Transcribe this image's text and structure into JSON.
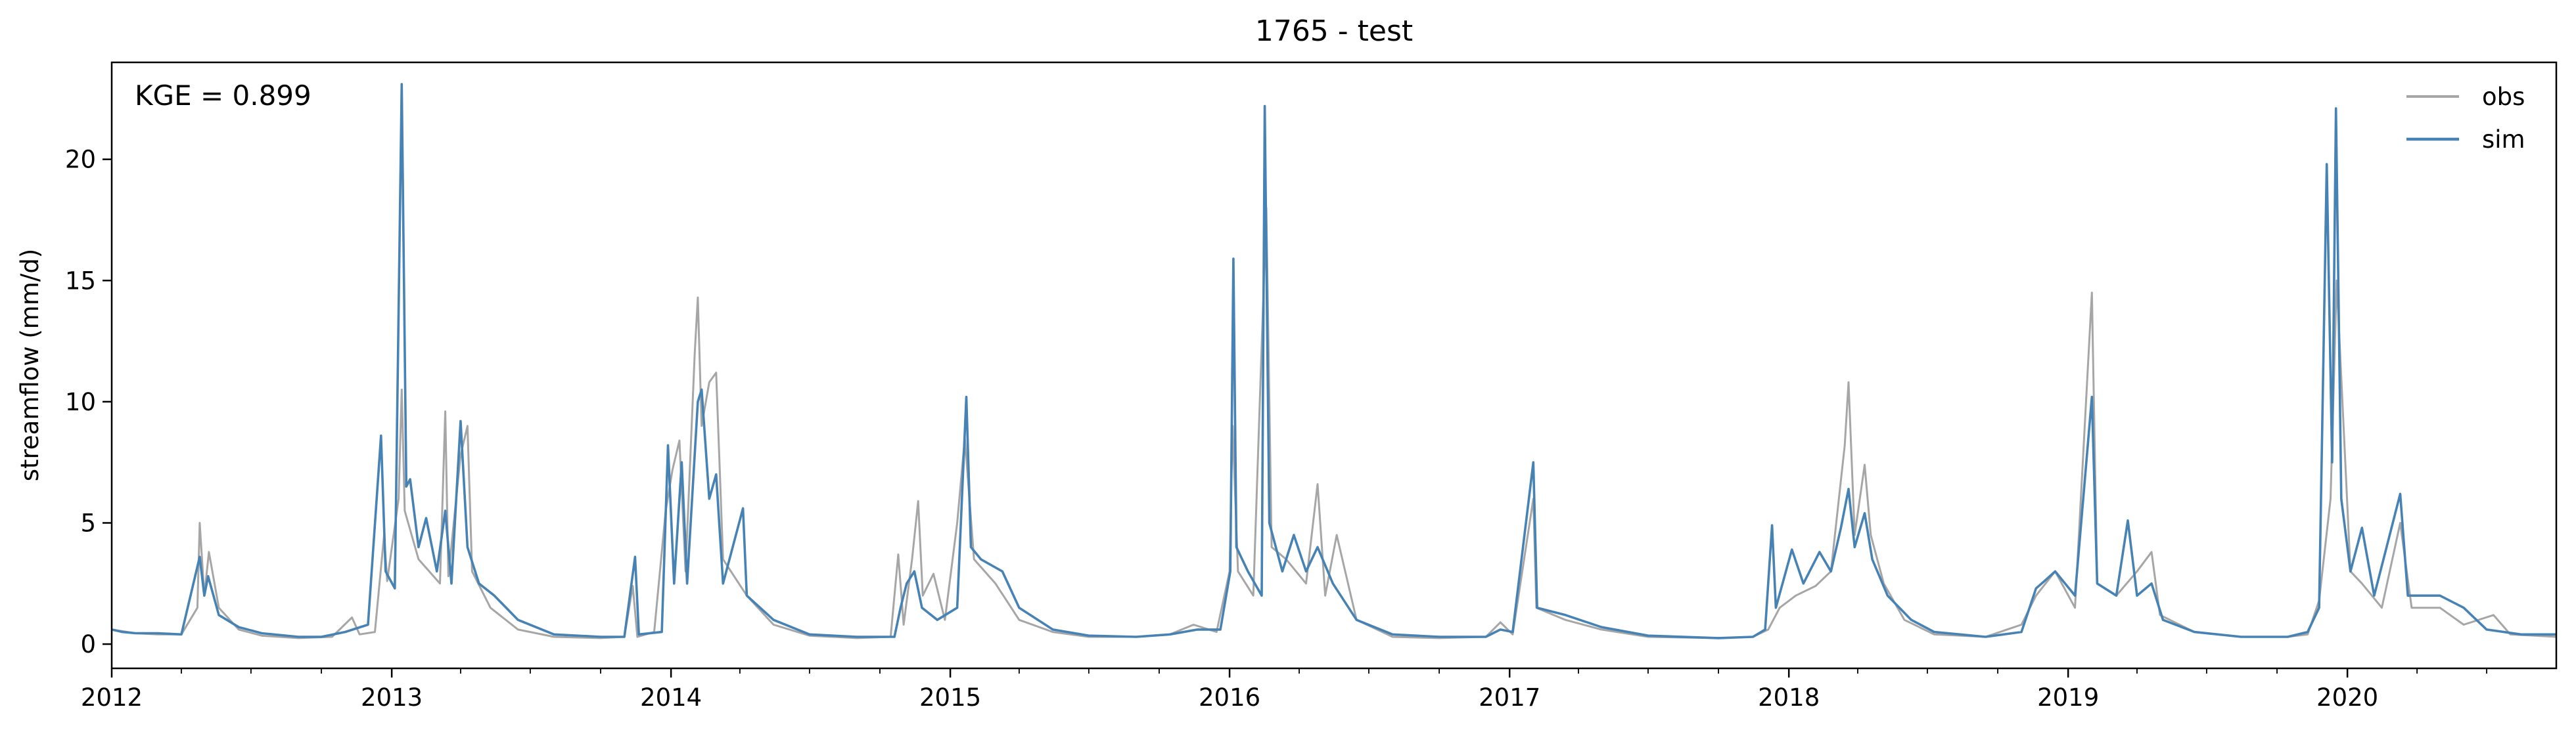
{
  "chart_data": {
    "type": "line",
    "title": "1765 - test",
    "xlabel": "",
    "ylabel": "streamflow (mm/d)",
    "annotation": "KGE = 0.899",
    "legend_position": "top-right",
    "grid": false,
    "xlim": [
      "2012-01-01",
      "2020-09-30"
    ],
    "ylim": [
      -1.0,
      24.0
    ],
    "x_ticks": [
      "2012",
      "2013",
      "2014",
      "2015",
      "2016",
      "2017",
      "2018",
      "2019",
      "2020"
    ],
    "y_ticks": [
      0,
      5,
      10,
      15,
      20
    ],
    "colors": {
      "obs": "#a6a6a6",
      "sim": "#4682b4"
    },
    "series": [
      {
        "name": "obs",
        "color": "#a6a6a6",
        "points": [
          [
            "2012-01-01",
            0.6
          ],
          [
            "2012-02-01",
            0.45
          ],
          [
            "2012-03-01",
            0.4
          ],
          [
            "2012-04-01",
            0.4
          ],
          [
            "2012-04-22",
            1.5
          ],
          [
            "2012-04-25",
            5.0
          ],
          [
            "2012-05-01",
            2.0
          ],
          [
            "2012-05-07",
            3.8
          ],
          [
            "2012-05-20",
            1.5
          ],
          [
            "2012-06-15",
            0.6
          ],
          [
            "2012-07-15",
            0.35
          ],
          [
            "2012-09-01",
            0.25
          ],
          [
            "2012-10-15",
            0.3
          ],
          [
            "2012-11-10",
            1.1
          ],
          [
            "2012-11-20",
            0.4
          ],
          [
            "2012-12-10",
            0.5
          ],
          [
            "2012-12-22",
            4.5
          ],
          [
            "2012-12-26",
            2.6
          ],
          [
            "2013-01-10",
            6.0
          ],
          [
            "2013-01-14",
            10.5
          ],
          [
            "2013-01-18",
            5.5
          ],
          [
            "2013-02-05",
            3.5
          ],
          [
            "2013-03-05",
            2.5
          ],
          [
            "2013-03-12",
            9.6
          ],
          [
            "2013-03-16",
            2.8
          ],
          [
            "2013-04-01",
            7.8
          ],
          [
            "2013-04-10",
            9.0
          ],
          [
            "2013-04-16",
            3.0
          ],
          [
            "2013-05-10",
            1.5
          ],
          [
            "2013-06-15",
            0.6
          ],
          [
            "2013-08-01",
            0.3
          ],
          [
            "2013-10-01",
            0.25
          ],
          [
            "2013-11-01",
            0.3
          ],
          [
            "2013-11-12",
            2.4
          ],
          [
            "2013-11-18",
            0.3
          ],
          [
            "2013-12-10",
            0.5
          ],
          [
            "2013-12-25",
            5.5
          ],
          [
            "2014-01-03",
            7.2
          ],
          [
            "2014-01-12",
            8.4
          ],
          [
            "2014-01-20",
            3.0
          ],
          [
            "2014-02-01",
            12.0
          ],
          [
            "2014-02-05",
            14.3
          ],
          [
            "2014-02-10",
            9.0
          ],
          [
            "2014-02-20",
            10.8
          ],
          [
            "2014-03-01",
            11.2
          ],
          [
            "2014-03-10",
            3.5
          ],
          [
            "2014-04-10",
            2.0
          ],
          [
            "2014-05-15",
            0.8
          ],
          [
            "2014-07-01",
            0.35
          ],
          [
            "2014-09-01",
            0.25
          ],
          [
            "2014-10-15",
            0.3
          ],
          [
            "2014-10-25",
            3.7
          ],
          [
            "2014-11-01",
            0.8
          ],
          [
            "2014-11-12",
            3.5
          ],
          [
            "2014-11-20",
            5.9
          ],
          [
            "2014-11-26",
            2.0
          ],
          [
            "2014-12-10",
            2.9
          ],
          [
            "2014-12-25",
            1.0
          ],
          [
            "2015-01-10",
            5.0
          ],
          [
            "2015-01-20",
            8.5
          ],
          [
            "2015-02-01",
            3.5
          ],
          [
            "2015-03-01",
            2.5
          ],
          [
            "2015-04-01",
            1.0
          ],
          [
            "2015-05-15",
            0.5
          ],
          [
            "2015-07-01",
            0.3
          ],
          [
            "2015-09-01",
            0.3
          ],
          [
            "2015-10-15",
            0.4
          ],
          [
            "2015-11-15",
            0.8
          ],
          [
            "2015-12-15",
            0.5
          ],
          [
            "2016-01-01",
            3.0
          ],
          [
            "2016-01-05",
            9.0
          ],
          [
            "2016-01-12",
            3.0
          ],
          [
            "2016-02-01",
            2.0
          ],
          [
            "2016-02-18",
            18.0
          ],
          [
            "2016-02-25",
            4.0
          ],
          [
            "2016-03-15",
            3.5
          ],
          [
            "2016-04-10",
            2.5
          ],
          [
            "2016-04-25",
            6.6
          ],
          [
            "2016-05-05",
            2.0
          ],
          [
            "2016-05-20",
            4.5
          ],
          [
            "2016-06-15",
            1.0
          ],
          [
            "2016-08-01",
            0.3
          ],
          [
            "2016-10-01",
            0.25
          ],
          [
            "2016-12-01",
            0.3
          ],
          [
            "2016-12-20",
            0.9
          ],
          [
            "2017-01-05",
            0.4
          ],
          [
            "2017-02-01",
            6.0
          ],
          [
            "2017-02-05",
            1.5
          ],
          [
            "2017-03-15",
            1.0
          ],
          [
            "2017-05-01",
            0.6
          ],
          [
            "2017-07-01",
            0.3
          ],
          [
            "2017-10-01",
            0.25
          ],
          [
            "2017-11-15",
            0.3
          ],
          [
            "2017-12-05",
            0.6
          ],
          [
            "2017-12-20",
            1.5
          ],
          [
            "2018-01-10",
            2.0
          ],
          [
            "2018-02-05",
            2.4
          ],
          [
            "2018-02-25",
            3.0
          ],
          [
            "2018-03-15",
            8.2
          ],
          [
            "2018-03-20",
            10.8
          ],
          [
            "2018-03-28",
            4.5
          ],
          [
            "2018-04-10",
            7.4
          ],
          [
            "2018-04-18",
            4.5
          ],
          [
            "2018-05-05",
            2.5
          ],
          [
            "2018-06-01",
            1.0
          ],
          [
            "2018-07-10",
            0.4
          ],
          [
            "2018-09-15",
            0.3
          ],
          [
            "2018-11-01",
            0.8
          ],
          [
            "2018-11-20",
            2.0
          ],
          [
            "2018-12-15",
            3.0
          ],
          [
            "2019-01-10",
            1.5
          ],
          [
            "2019-02-01",
            14.5
          ],
          [
            "2019-02-08",
            2.5
          ],
          [
            "2019-03-05",
            2.0
          ],
          [
            "2019-04-01",
            3.0
          ],
          [
            "2019-04-20",
            3.8
          ],
          [
            "2019-05-01",
            1.2
          ],
          [
            "2019-06-15",
            0.5
          ],
          [
            "2019-08-15",
            0.3
          ],
          [
            "2019-10-15",
            0.3
          ],
          [
            "2019-11-10",
            0.4
          ],
          [
            "2019-11-25",
            1.8
          ],
          [
            "2019-12-10",
            6.0
          ],
          [
            "2019-12-18",
            15.0
          ],
          [
            "2019-12-24",
            11.0
          ],
          [
            "2020-01-05",
            3.0
          ],
          [
            "2020-01-20",
            2.5
          ],
          [
            "2020-02-15",
            1.5
          ],
          [
            "2020-03-10",
            5.0
          ],
          [
            "2020-03-25",
            1.5
          ],
          [
            "2020-05-01",
            1.5
          ],
          [
            "2020-06-01",
            0.8
          ],
          [
            "2020-07-10",
            1.2
          ],
          [
            "2020-08-01",
            0.4
          ],
          [
            "2020-09-30",
            0.3
          ]
        ]
      },
      {
        "name": "sim",
        "color": "#4682b4",
        "points": [
          [
            "2012-01-01",
            0.6
          ],
          [
            "2012-01-15",
            0.5
          ],
          [
            "2012-02-01",
            0.45
          ],
          [
            "2012-03-01",
            0.45
          ],
          [
            "2012-04-01",
            0.4
          ],
          [
            "2012-04-25",
            3.6
          ],
          [
            "2012-05-01",
            2.0
          ],
          [
            "2012-05-06",
            2.8
          ],
          [
            "2012-05-20",
            1.2
          ],
          [
            "2012-06-15",
            0.7
          ],
          [
            "2012-07-15",
            0.45
          ],
          [
            "2012-09-01",
            0.3
          ],
          [
            "2012-10-01",
            0.3
          ],
          [
            "2012-11-01",
            0.5
          ],
          [
            "2012-12-01",
            0.8
          ],
          [
            "2012-12-18",
            8.6
          ],
          [
            "2012-12-24",
            3.0
          ],
          [
            "2013-01-05",
            2.3
          ],
          [
            "2013-01-14",
            23.1
          ],
          [
            "2013-01-20",
            6.5
          ],
          [
            "2013-01-25",
            6.8
          ],
          [
            "2013-02-05",
            4.0
          ],
          [
            "2013-02-15",
            5.2
          ],
          [
            "2013-03-01",
            3.0
          ],
          [
            "2013-03-12",
            5.5
          ],
          [
            "2013-03-20",
            2.5
          ],
          [
            "2013-04-01",
            9.2
          ],
          [
            "2013-04-10",
            4.0
          ],
          [
            "2013-04-25",
            2.5
          ],
          [
            "2013-05-15",
            2.0
          ],
          [
            "2013-06-15",
            1.0
          ],
          [
            "2013-08-01",
            0.4
          ],
          [
            "2013-10-01",
            0.3
          ],
          [
            "2013-11-01",
            0.3
          ],
          [
            "2013-11-15",
            3.6
          ],
          [
            "2013-11-20",
            0.4
          ],
          [
            "2013-12-20",
            0.5
          ],
          [
            "2013-12-28",
            8.2
          ],
          [
            "2014-01-05",
            2.5
          ],
          [
            "2014-01-15",
            7.5
          ],
          [
            "2014-01-22",
            2.5
          ],
          [
            "2014-02-05",
            10.0
          ],
          [
            "2014-02-10",
            10.5
          ],
          [
            "2014-02-20",
            6.0
          ],
          [
            "2014-03-01",
            7.0
          ],
          [
            "2014-03-10",
            2.5
          ],
          [
            "2014-04-05",
            5.6
          ],
          [
            "2014-04-10",
            2.0
          ],
          [
            "2014-05-15",
            1.0
          ],
          [
            "2014-07-01",
            0.4
          ],
          [
            "2014-09-01",
            0.3
          ],
          [
            "2014-10-20",
            0.3
          ],
          [
            "2014-10-28",
            1.5
          ],
          [
            "2014-11-05",
            2.5
          ],
          [
            "2014-11-15",
            3.0
          ],
          [
            "2014-11-25",
            1.5
          ],
          [
            "2014-12-15",
            1.0
          ],
          [
            "2015-01-10",
            1.5
          ],
          [
            "2015-01-22",
            10.2
          ],
          [
            "2015-01-28",
            4.0
          ],
          [
            "2015-02-10",
            3.5
          ],
          [
            "2015-03-10",
            3.0
          ],
          [
            "2015-04-01",
            1.5
          ],
          [
            "2015-05-15",
            0.6
          ],
          [
            "2015-07-01",
            0.35
          ],
          [
            "2015-09-01",
            0.3
          ],
          [
            "2015-10-15",
            0.4
          ],
          [
            "2015-11-20",
            0.6
          ],
          [
            "2015-12-20",
            0.6
          ],
          [
            "2016-01-02",
            3.0
          ],
          [
            "2016-01-06",
            15.9
          ],
          [
            "2016-01-10",
            4.0
          ],
          [
            "2016-01-25",
            3.0
          ],
          [
            "2016-02-12",
            2.0
          ],
          [
            "2016-02-16",
            22.2
          ],
          [
            "2016-02-22",
            5.0
          ],
          [
            "2016-03-10",
            3.0
          ],
          [
            "2016-03-25",
            4.5
          ],
          [
            "2016-04-10",
            3.0
          ],
          [
            "2016-04-25",
            4.0
          ],
          [
            "2016-05-15",
            2.5
          ],
          [
            "2016-06-15",
            1.0
          ],
          [
            "2016-08-01",
            0.4
          ],
          [
            "2016-10-01",
            0.3
          ],
          [
            "2016-12-01",
            0.3
          ],
          [
            "2016-12-20",
            0.6
          ],
          [
            "2017-01-05",
            0.5
          ],
          [
            "2017-02-01",
            7.5
          ],
          [
            "2017-02-06",
            1.5
          ],
          [
            "2017-03-15",
            1.2
          ],
          [
            "2017-05-01",
            0.7
          ],
          [
            "2017-07-01",
            0.35
          ],
          [
            "2017-10-01",
            0.25
          ],
          [
            "2017-11-15",
            0.3
          ],
          [
            "2017-12-01",
            0.6
          ],
          [
            "2017-12-10",
            4.9
          ],
          [
            "2017-12-15",
            1.5
          ],
          [
            "2018-01-05",
            3.9
          ],
          [
            "2018-01-20",
            2.5
          ],
          [
            "2018-02-10",
            3.8
          ],
          [
            "2018-02-25",
            3.0
          ],
          [
            "2018-03-10",
            4.8
          ],
          [
            "2018-03-20",
            6.4
          ],
          [
            "2018-03-28",
            4.0
          ],
          [
            "2018-04-10",
            5.4
          ],
          [
            "2018-04-20",
            3.5
          ],
          [
            "2018-05-10",
            2.0
          ],
          [
            "2018-06-10",
            1.0
          ],
          [
            "2018-07-10",
            0.5
          ],
          [
            "2018-09-15",
            0.3
          ],
          [
            "2018-11-01",
            0.5
          ],
          [
            "2018-11-20",
            2.3
          ],
          [
            "2018-12-01",
            2.6
          ],
          [
            "2018-12-15",
            3.0
          ],
          [
            "2019-01-10",
            2.0
          ],
          [
            "2019-02-01",
            10.2
          ],
          [
            "2019-02-08",
            2.5
          ],
          [
            "2019-03-05",
            2.0
          ],
          [
            "2019-03-20",
            5.1
          ],
          [
            "2019-04-01",
            2.0
          ],
          [
            "2019-04-20",
            2.5
          ],
          [
            "2019-05-05",
            1.0
          ],
          [
            "2019-06-15",
            0.5
          ],
          [
            "2019-08-15",
            0.3
          ],
          [
            "2019-10-15",
            0.3
          ],
          [
            "2019-11-10",
            0.5
          ],
          [
            "2019-11-25",
            1.5
          ],
          [
            "2019-12-05",
            19.8
          ],
          [
            "2019-12-12",
            7.5
          ],
          [
            "2019-12-17",
            22.1
          ],
          [
            "2019-12-24",
            6.0
          ],
          [
            "2020-01-05",
            3.0
          ],
          [
            "2020-01-20",
            4.8
          ],
          [
            "2020-02-05",
            2.0
          ],
          [
            "2020-03-10",
            6.2
          ],
          [
            "2020-03-20",
            2.0
          ],
          [
            "2020-05-01",
            2.0
          ],
          [
            "2020-06-01",
            1.5
          ],
          [
            "2020-07-01",
            0.6
          ],
          [
            "2020-08-15",
            0.4
          ],
          [
            "2020-09-30",
            0.4
          ]
        ]
      }
    ]
  }
}
